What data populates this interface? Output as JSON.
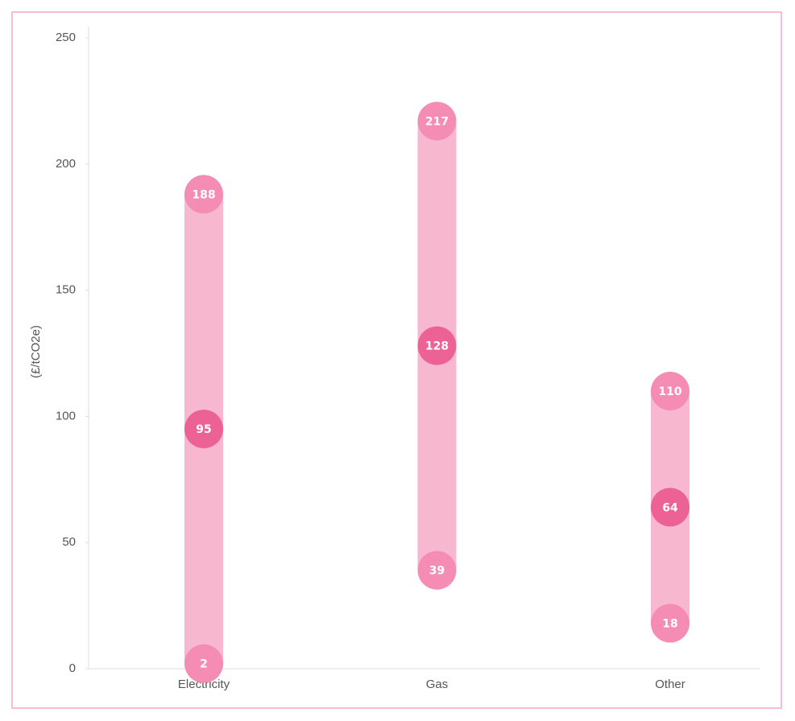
{
  "chart_data": {
    "type": "range",
    "y_label": "(£/tCO2e)",
    "categories": [
      "Electricity",
      "Gas",
      "Other"
    ],
    "range_color": "#f7b8cf",
    "series": [
      {
        "color": "#f48cb3",
        "values": [
          2,
          39,
          18
        ]
      },
      {
        "color": "#ec6294",
        "values": [
          95,
          128,
          64
        ]
      },
      {
        "color": "#f48cb3",
        "values": [
          188,
          217,
          110
        ]
      }
    ],
    "ylim": [
      0,
      250
    ],
    "yticks": [
      0,
      50,
      100,
      150,
      200,
      250
    ]
  }
}
